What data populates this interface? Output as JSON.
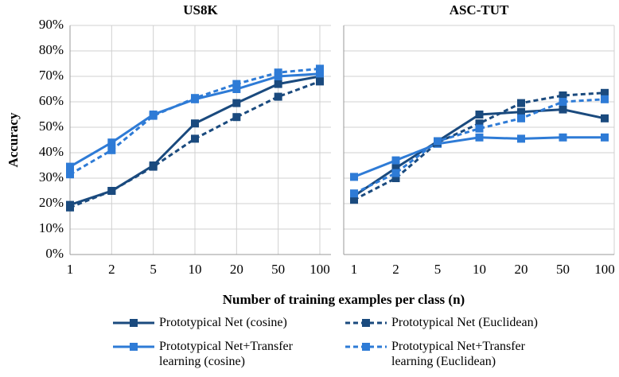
{
  "chart_data": {
    "type": "line",
    "ylabel": "Accuracy",
    "xlabel": "Number of training examples per class (n)",
    "categories": [
      "1",
      "2",
      "5",
      "10",
      "20",
      "50",
      "100"
    ],
    "ylim": [
      0,
      90
    ],
    "yticks": [
      {
        "value": 0,
        "label": "0%"
      },
      {
        "value": 10,
        "label": "10%"
      },
      {
        "value": 20,
        "label": "20%"
      },
      {
        "value": 30,
        "label": "30%"
      },
      {
        "value": 40,
        "label": "40%"
      },
      {
        "value": 50,
        "label": "50%"
      },
      {
        "value": 60,
        "label": "60%"
      },
      {
        "value": 70,
        "label": "70%"
      },
      {
        "value": 80,
        "label": "80%"
      },
      {
        "value": 90,
        "label": "90%"
      }
    ],
    "grid": true,
    "series": [
      {
        "name": "Prototypical Net (cosine)",
        "color": "#1a4a7e",
        "dashed": false
      },
      {
        "name": "Prototypical Net+Transfer learning (cosine)",
        "color": "#2e7bd6",
        "dashed": false
      },
      {
        "name": "Prototypical Net (Euclidean)",
        "color": "#1a4a7e",
        "dashed": true
      },
      {
        "name": "Prototypical Net+Transfer learning (Euclidean)",
        "color": "#2e7bd6",
        "dashed": true
      }
    ],
    "panels": [
      {
        "title": "US8K",
        "values": [
          [
            19.5,
            25,
            35,
            51.5,
            59.5,
            67,
            70
          ],
          [
            34.5,
            44,
            55,
            61,
            65,
            70,
            71
          ],
          [
            18.5,
            25,
            34.5,
            45.5,
            54,
            62,
            68
          ],
          [
            31.5,
            41,
            54.5,
            61.5,
            67,
            71.5,
            73
          ]
        ]
      },
      {
        "title": "ASC-TUT",
        "values": [
          [
            23,
            34,
            44.5,
            55,
            56,
            57,
            53.5
          ],
          [
            30.5,
            37,
            43.5,
            46,
            45.5,
            46,
            46
          ],
          [
            21.5,
            30,
            44,
            51.5,
            59.5,
            62.5,
            63.5
          ],
          [
            24,
            32,
            44.5,
            49.5,
            53.5,
            60,
            61
          ]
        ]
      }
    ]
  }
}
